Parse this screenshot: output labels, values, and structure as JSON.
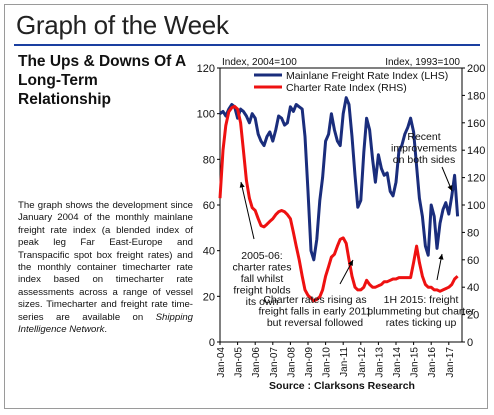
{
  "page": {
    "title": "Graph of the Week",
    "headline": "The Ups & Downs Of A Long-Term Relationship",
    "description": {
      "before": "The graph shows the development since January 2004 of the monthly mainlane freight rate index (a blended index of peak leg Far East-Europe and Transpacific spot box freight rates) and the monthly container timecharter rate index based on timecharter rate assessments across a range of vessel sizes. Timecharter and freight rate time-series are available on ",
      "emphasis": "Shipping Intelligence Network",
      "after": "."
    },
    "source": "Source : Clarksons Research"
  },
  "colors": {
    "freight": "#1a2d7c",
    "charter": "#ee1111",
    "rule": "#1a3fa0"
  },
  "chart_data": {
    "type": "line",
    "left_axis_title": "Index, 2004=100",
    "right_axis_title": "Index, 1993=100",
    "left_ylim": [
      0,
      120
    ],
    "right_ylim": [
      0,
      200
    ],
    "left_ticks": [
      0,
      20,
      40,
      60,
      80,
      100,
      120
    ],
    "right_ticks": [
      0,
      20,
      40,
      60,
      80,
      100,
      120,
      140,
      160,
      180,
      200
    ],
    "xlim": [
      2004.0,
      2017.75
    ],
    "x_ticks": [
      {
        "t": 2004,
        "label": "Jan-04"
      },
      {
        "t": 2005,
        "label": "Jan-05"
      },
      {
        "t": 2006,
        "label": "Jan-06"
      },
      {
        "t": 2007,
        "label": "Jan-07"
      },
      {
        "t": 2008,
        "label": "Jan-08"
      },
      {
        "t": 2009,
        "label": "Jan-09"
      },
      {
        "t": 2010,
        "label": "Jan-10"
      },
      {
        "t": 2011,
        "label": "Jan-11"
      },
      {
        "t": 2012,
        "label": "Jan-12"
      },
      {
        "t": 2013,
        "label": "Jan-13"
      },
      {
        "t": 2014,
        "label": "Jan-14"
      },
      {
        "t": 2015,
        "label": "Jan-15"
      },
      {
        "t": 2016,
        "label": "Jan-16"
      },
      {
        "t": 2017,
        "label": "Jan-17"
      }
    ],
    "grid": false,
    "legend_position": "top",
    "series": [
      {
        "name": "Mainlane Freight Rate Index (LHS)",
        "axis": "left",
        "x": [
          2004.0,
          2004.17,
          2004.33,
          2004.5,
          2004.67,
          2004.83,
          2005.0,
          2005.17,
          2005.33,
          2005.5,
          2005.67,
          2005.83,
          2006.0,
          2006.17,
          2006.33,
          2006.5,
          2006.67,
          2006.83,
          2007.0,
          2007.17,
          2007.33,
          2007.5,
          2007.67,
          2007.83,
          2008.0,
          2008.17,
          2008.33,
          2008.5,
          2008.67,
          2008.83,
          2009.0,
          2009.17,
          2009.33,
          2009.5,
          2009.67,
          2009.83,
          2010.0,
          2010.17,
          2010.33,
          2010.5,
          2010.67,
          2010.83,
          2011.0,
          2011.17,
          2011.33,
          2011.5,
          2011.67,
          2011.83,
          2012.0,
          2012.17,
          2012.33,
          2012.5,
          2012.67,
          2012.83,
          2013.0,
          2013.17,
          2013.33,
          2013.5,
          2013.67,
          2013.83,
          2014.0,
          2014.17,
          2014.33,
          2014.5,
          2014.67,
          2014.83,
          2015.0,
          2015.17,
          2015.33,
          2015.5,
          2015.67,
          2015.83,
          2016.0,
          2016.17,
          2016.33,
          2016.5,
          2016.67,
          2016.83,
          2017.0,
          2017.17,
          2017.33,
          2017.5
        ],
        "y": [
          100,
          101,
          99,
          102,
          104,
          103,
          98,
          102,
          101,
          99,
          96,
          100,
          98,
          91,
          88,
          86,
          90,
          92,
          88,
          93,
          99,
          98,
          95,
          96,
          103,
          101,
          104,
          103,
          102,
          90,
          66,
          40,
          36,
          45,
          62,
          72,
          88,
          91,
          100,
          93,
          88,
          86,
          100,
          107,
          104,
          90,
          73,
          59,
          62,
          83,
          98,
          93,
          80,
          70,
          82,
          76,
          73,
          74,
          66,
          64,
          70,
          84,
          86,
          91,
          94,
          98,
          92,
          77,
          63,
          55,
          42,
          38,
          60,
          55,
          41,
          52,
          58,
          61,
          56,
          64,
          73,
          55
        ]
      },
      {
        "name": "Charter Rate Index (RHS)",
        "axis": "right",
        "x": [
          2004.0,
          2004.17,
          2004.33,
          2004.5,
          2004.67,
          2004.83,
          2005.0,
          2005.17,
          2005.33,
          2005.5,
          2005.67,
          2005.83,
          2006.0,
          2006.17,
          2006.33,
          2006.5,
          2006.67,
          2006.83,
          2007.0,
          2007.17,
          2007.33,
          2007.5,
          2007.67,
          2007.83,
          2008.0,
          2008.17,
          2008.33,
          2008.5,
          2008.67,
          2008.83,
          2009.0,
          2009.17,
          2009.33,
          2009.5,
          2009.67,
          2009.83,
          2010.0,
          2010.17,
          2010.33,
          2010.5,
          2010.67,
          2010.83,
          2011.0,
          2011.17,
          2011.33,
          2011.5,
          2011.67,
          2011.83,
          2012.0,
          2012.17,
          2012.33,
          2012.5,
          2012.67,
          2012.83,
          2013.0,
          2013.17,
          2013.33,
          2013.5,
          2013.67,
          2013.83,
          2014.0,
          2014.17,
          2014.33,
          2014.5,
          2014.67,
          2014.83,
          2015.0,
          2015.17,
          2015.33,
          2015.5,
          2015.67,
          2015.83,
          2016.0,
          2016.17,
          2016.33,
          2016.5,
          2016.67,
          2016.83,
          2017.0,
          2017.17,
          2017.33,
          2017.5
        ],
        "y": [
          105,
          140,
          158,
          168,
          171,
          172,
          170,
          160,
          140,
          118,
          105,
          98,
          96,
          90,
          85,
          84,
          86,
          88,
          90,
          93,
          95,
          96,
          95,
          93,
          90,
          80,
          70,
          60,
          48,
          38,
          34,
          32,
          30,
          31,
          33,
          38,
          48,
          55,
          62,
          64,
          70,
          75,
          76,
          72,
          60,
          48,
          40,
          38,
          38,
          40,
          45,
          42,
          40,
          40,
          41,
          42,
          44,
          44,
          45,
          46,
          46,
          47,
          47,
          47,
          47,
          47,
          58,
          70,
          58,
          48,
          42,
          40,
          40,
          38,
          38,
          37,
          38,
          39,
          40,
          42,
          46,
          48
        ]
      }
    ],
    "annotations": [
      {
        "id": "recent",
        "lines": [
          "Recent",
          "improvements",
          "on both sides"
        ]
      },
      {
        "id": "y0506",
        "lines": [
          "2005-06:",
          "charter rates",
          "fall whilst",
          "freight holds",
          "its own"
        ]
      },
      {
        "id": "y2011",
        "lines": [
          "Charter rates rising as",
          "freight falls in early 2011",
          "but reversal followed"
        ]
      },
      {
        "id": "h2015",
        "lines": [
          "1H 2015: freight",
          "plummeting but charter",
          "rates ticking up"
        ]
      }
    ]
  }
}
